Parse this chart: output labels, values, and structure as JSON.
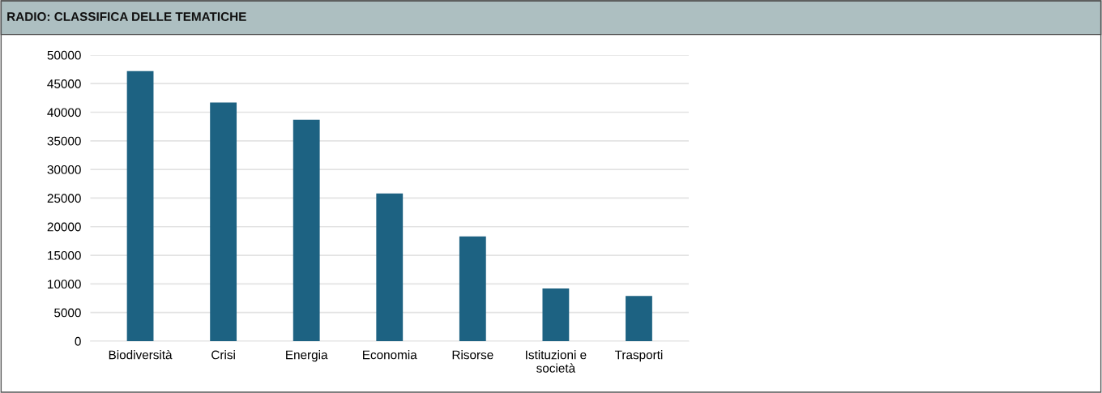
{
  "chart_data": {
    "type": "bar",
    "title": "RADIO: CLASSIFICA DELLE TEMATICHE",
    "categories": [
      "Biodiversità",
      "Crisi",
      "Energia",
      "Economia",
      "Risorse",
      "Istituzioni e\nsocietà",
      "Trasporti"
    ],
    "values": [
      47200,
      41700,
      38700,
      25800,
      18300,
      9200,
      7900
    ],
    "color": "#1d6282",
    "ylim": [
      0,
      50000
    ],
    "yticks": [
      0,
      5000,
      10000,
      15000,
      20000,
      25000,
      30000,
      35000,
      40000,
      45000,
      50000
    ],
    "grid": "y"
  }
}
